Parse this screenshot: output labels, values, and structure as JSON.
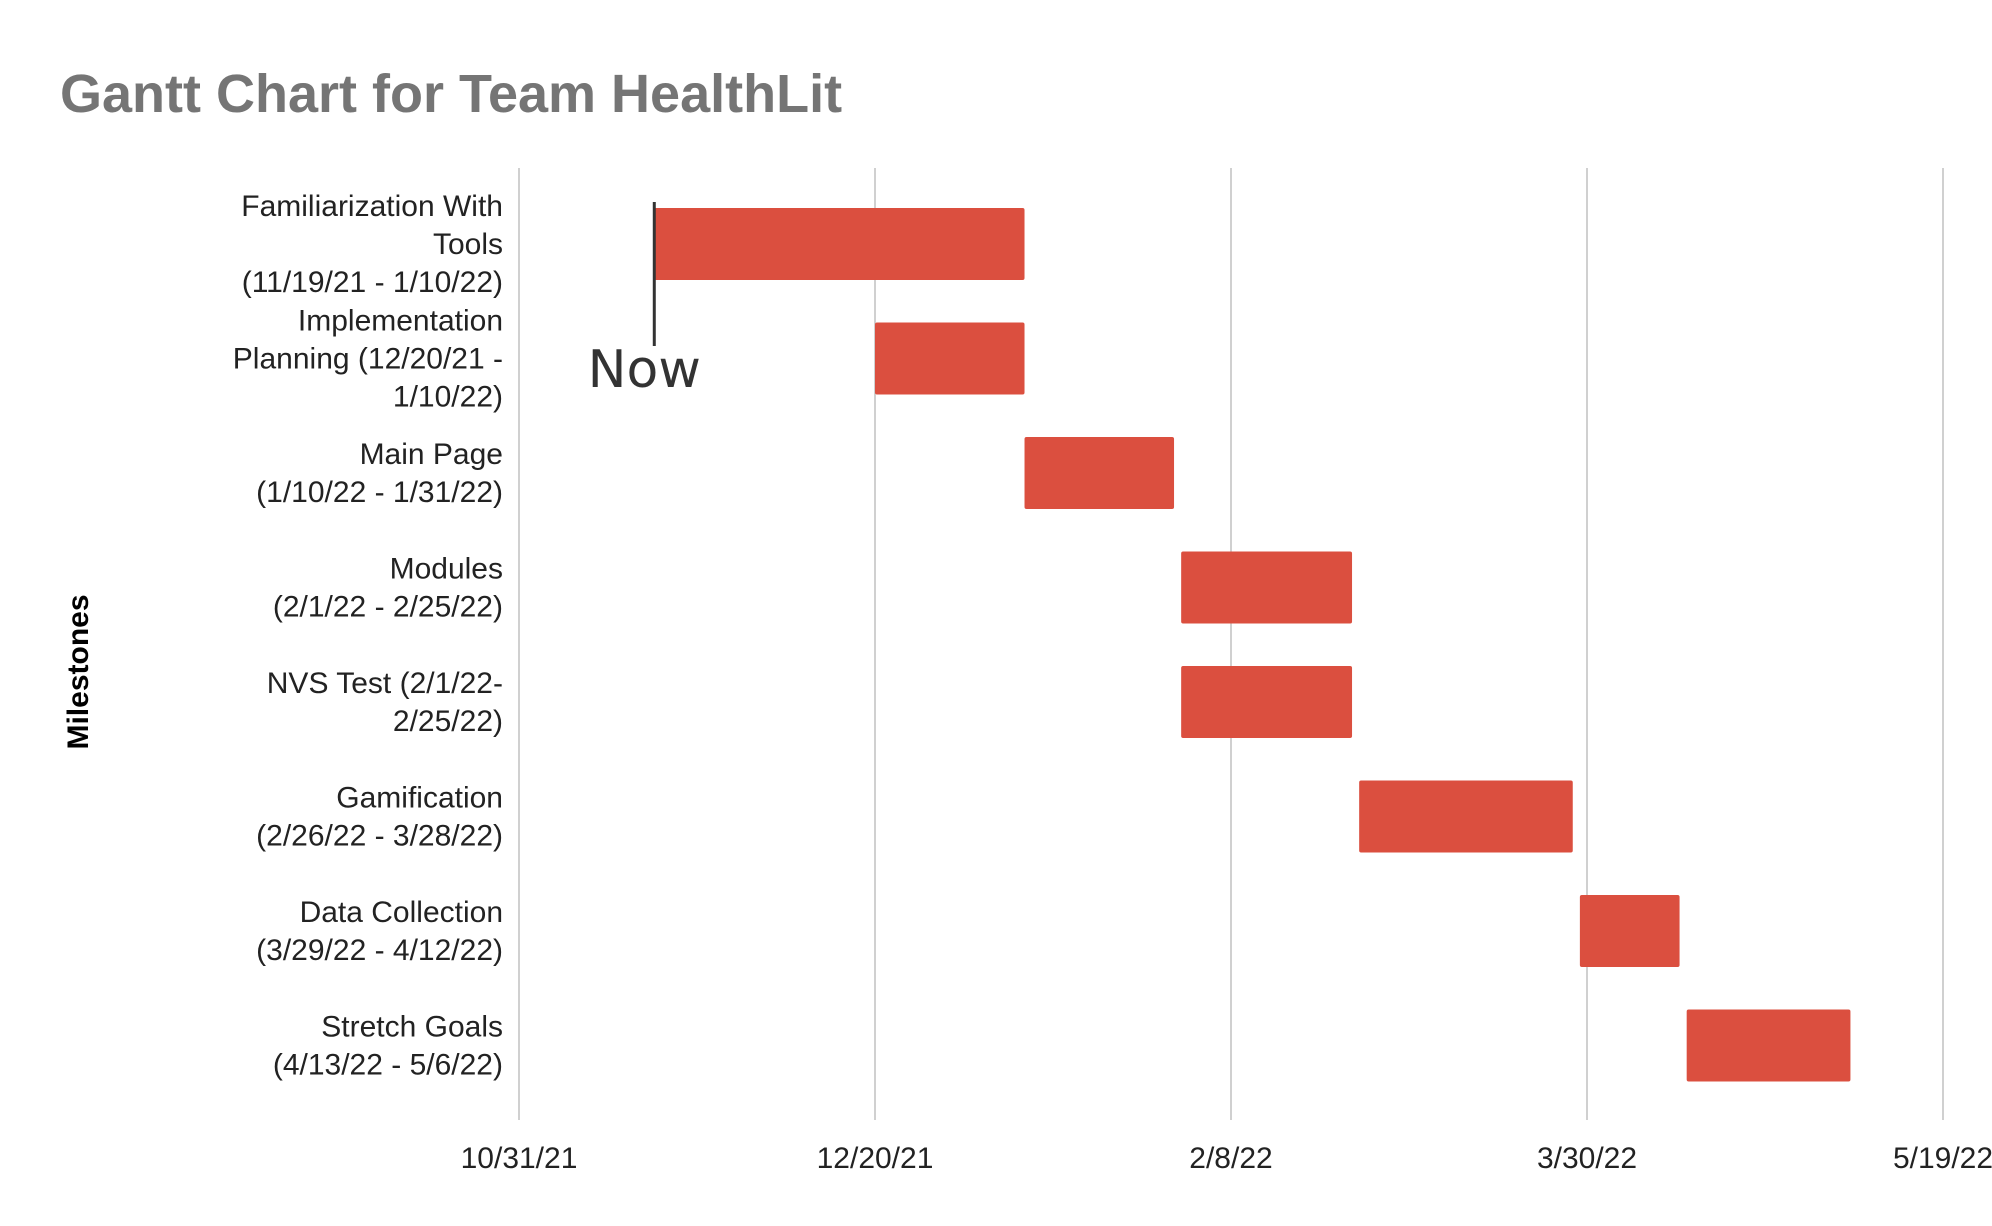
{
  "chart_data": {
    "type": "bar",
    "orientation": "horizontal-floating",
    "title": "Gantt Chart for Team HealthLit",
    "ylabel": "Milestones",
    "xlabel": "",
    "xlim": [
      "2021-10-31",
      "2022-05-19"
    ],
    "x_ticks": [
      "10/31/21",
      "12/20/21",
      "2/8/22",
      "3/30/22",
      "5/19/22"
    ],
    "grid": true,
    "legend": "none",
    "bar_color": "#db4f3f",
    "categories": [
      [
        "Familiarization With",
        "Tools",
        "(11/19/21 - 1/10/22)"
      ],
      [
        "Implementation",
        "Planning (12/20/21 -",
        "1/10/22)"
      ],
      [
        "Main Page",
        "(1/10/22 - 1/31/22)"
      ],
      [
        "Modules",
        "(2/1/22 - 2/25/22)"
      ],
      [
        "NVS Test (2/1/22-",
        "2/25/22)"
      ],
      [
        "Gamification",
        "(2/26/22 - 3/28/22)"
      ],
      [
        "Data Collection",
        "(3/29/22 - 4/12/22)"
      ],
      [
        "Stretch Goals",
        "(4/13/22 - 5/6/22)"
      ]
    ],
    "ranges": [
      [
        "2021-11-19",
        "2022-01-10"
      ],
      [
        "2021-12-20",
        "2022-01-10"
      ],
      [
        "2022-01-10",
        "2022-01-31"
      ],
      [
        "2022-02-01",
        "2022-02-25"
      ],
      [
        "2022-02-01",
        "2022-02-25"
      ],
      [
        "2022-02-26",
        "2022-03-28"
      ],
      [
        "2022-03-29",
        "2022-04-12"
      ],
      [
        "2022-04-13",
        "2022-05-06"
      ]
    ],
    "annotation": {
      "text": "Now",
      "date": "2021-11-19"
    }
  }
}
